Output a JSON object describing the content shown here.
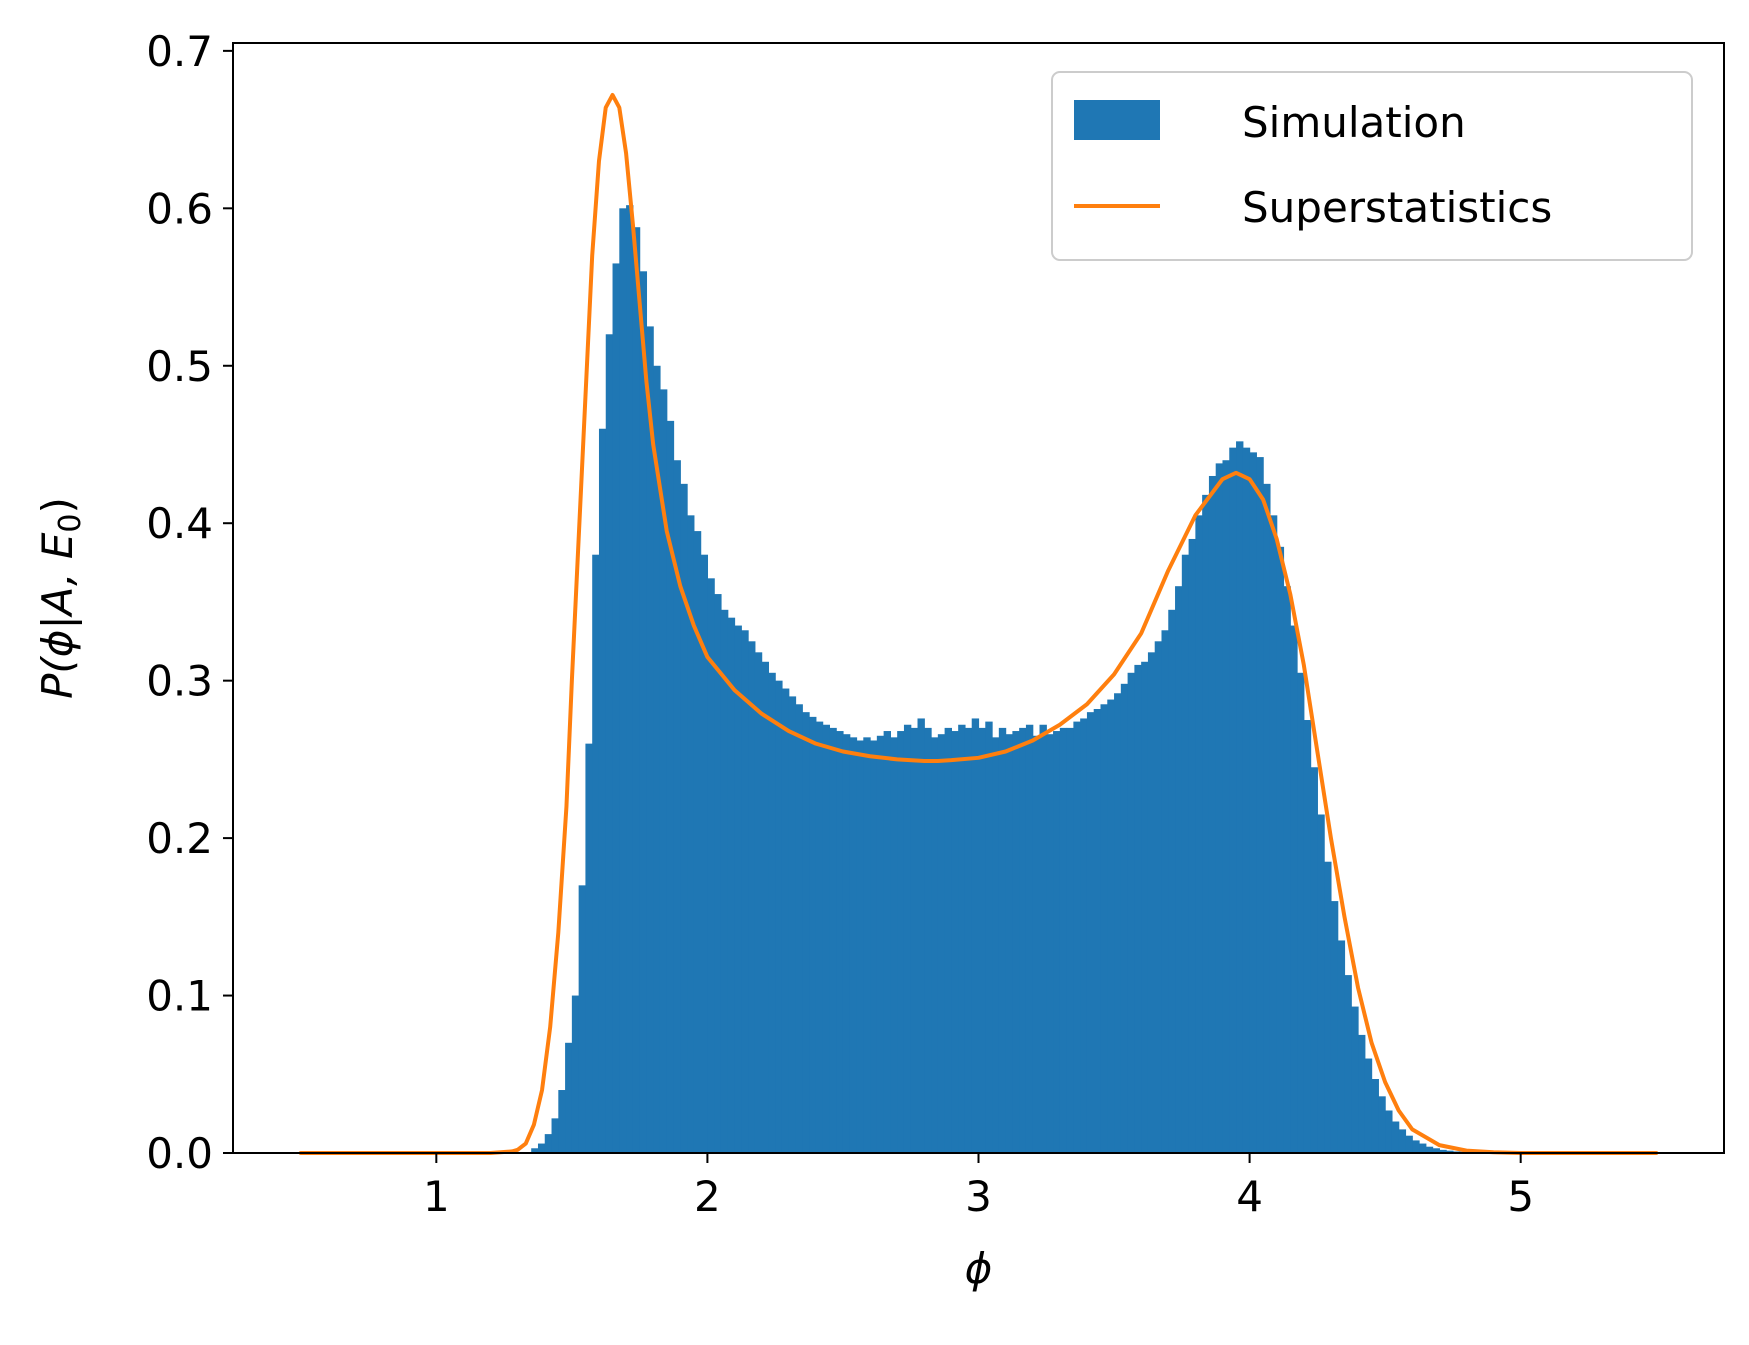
{
  "chart_data": {
    "type": "bar",
    "title": "",
    "xlabel": "ϕ",
    "ylabel_parts": {
      "main": "P(ϕ|A, E",
      "sub": "0",
      "close": ")"
    },
    "xlim": [
      0.25,
      5.75
    ],
    "ylim": [
      0.0,
      0.705
    ],
    "xticks": [
      1,
      2,
      3,
      4,
      5
    ],
    "xtick_labels": [
      "1",
      "2",
      "3",
      "4",
      "5"
    ],
    "yticks": [
      0.0,
      0.1,
      0.2,
      0.3,
      0.4,
      0.5,
      0.6,
      0.7
    ],
    "ytick_labels": [
      "0.0",
      "0.1",
      "0.2",
      "0.3",
      "0.4",
      "0.5",
      "0.6",
      "0.7"
    ],
    "grid": false,
    "legend_position": "top-right",
    "colors": {
      "simulation": "#1f77b4",
      "superstatistics": "#ff7f0e"
    },
    "series": [
      {
        "name": "Simulation",
        "kind": "histogram",
        "bin_width": 0.025,
        "bins": [
          [
            1.35,
            0.003
          ],
          [
            1.375,
            0.006
          ],
          [
            1.4,
            0.012
          ],
          [
            1.425,
            0.022
          ],
          [
            1.45,
            0.04
          ],
          [
            1.475,
            0.07
          ],
          [
            1.5,
            0.1
          ],
          [
            1.525,
            0.17
          ],
          [
            1.55,
            0.26
          ],
          [
            1.575,
            0.38
          ],
          [
            1.6,
            0.46
          ],
          [
            1.625,
            0.52
          ],
          [
            1.65,
            0.565
          ],
          [
            1.675,
            0.6
          ],
          [
            1.7,
            0.602
          ],
          [
            1.725,
            0.588
          ],
          [
            1.75,
            0.56
          ],
          [
            1.775,
            0.525
          ],
          [
            1.8,
            0.5
          ],
          [
            1.825,
            0.485
          ],
          [
            1.85,
            0.465
          ],
          [
            1.875,
            0.44
          ],
          [
            1.9,
            0.425
          ],
          [
            1.925,
            0.405
          ],
          [
            1.95,
            0.395
          ],
          [
            1.975,
            0.38
          ],
          [
            2.0,
            0.365
          ],
          [
            2.025,
            0.355
          ],
          [
            2.05,
            0.345
          ],
          [
            2.075,
            0.34
          ],
          [
            2.1,
            0.335
          ],
          [
            2.125,
            0.332
          ],
          [
            2.15,
            0.325
          ],
          [
            2.175,
            0.318
          ],
          [
            2.2,
            0.312
          ],
          [
            2.225,
            0.305
          ],
          [
            2.25,
            0.3
          ],
          [
            2.275,
            0.295
          ],
          [
            2.3,
            0.29
          ],
          [
            2.325,
            0.285
          ],
          [
            2.35,
            0.28
          ],
          [
            2.375,
            0.277
          ],
          [
            2.4,
            0.274
          ],
          [
            2.425,
            0.272
          ],
          [
            2.45,
            0.27
          ],
          [
            2.475,
            0.268
          ],
          [
            2.5,
            0.266
          ],
          [
            2.525,
            0.264
          ],
          [
            2.55,
            0.262
          ],
          [
            2.575,
            0.264
          ],
          [
            2.6,
            0.262
          ],
          [
            2.625,
            0.265
          ],
          [
            2.65,
            0.268
          ],
          [
            2.675,
            0.264
          ],
          [
            2.7,
            0.268
          ],
          [
            2.725,
            0.272
          ],
          [
            2.75,
            0.27
          ],
          [
            2.775,
            0.276
          ],
          [
            2.8,
            0.27
          ],
          [
            2.825,
            0.264
          ],
          [
            2.85,
            0.266
          ],
          [
            2.875,
            0.27
          ],
          [
            2.9,
            0.268
          ],
          [
            2.925,
            0.272
          ],
          [
            2.95,
            0.27
          ],
          [
            2.975,
            0.276
          ],
          [
            3.0,
            0.27
          ],
          [
            3.025,
            0.274
          ],
          [
            3.05,
            0.264
          ],
          [
            3.075,
            0.27
          ],
          [
            3.1,
            0.266
          ],
          [
            3.125,
            0.268
          ],
          [
            3.15,
            0.27
          ],
          [
            3.175,
            0.272
          ],
          [
            3.2,
            0.265
          ],
          [
            3.225,
            0.272
          ],
          [
            3.25,
            0.266
          ],
          [
            3.275,
            0.268
          ],
          [
            3.3,
            0.27
          ],
          [
            3.325,
            0.27
          ],
          [
            3.35,
            0.274
          ],
          [
            3.375,
            0.276
          ],
          [
            3.4,
            0.28
          ],
          [
            3.425,
            0.282
          ],
          [
            3.45,
            0.285
          ],
          [
            3.475,
            0.288
          ],
          [
            3.5,
            0.292
          ],
          [
            3.525,
            0.298
          ],
          [
            3.55,
            0.305
          ],
          [
            3.575,
            0.31
          ],
          [
            3.6,
            0.312
          ],
          [
            3.625,
            0.318
          ],
          [
            3.65,
            0.325
          ],
          [
            3.675,
            0.332
          ],
          [
            3.7,
            0.345
          ],
          [
            3.725,
            0.36
          ],
          [
            3.75,
            0.38
          ],
          [
            3.775,
            0.39
          ],
          [
            3.8,
            0.405
          ],
          [
            3.825,
            0.418
          ],
          [
            3.85,
            0.43
          ],
          [
            3.875,
            0.438
          ],
          [
            3.9,
            0.44
          ],
          [
            3.925,
            0.448
          ],
          [
            3.95,
            0.452
          ],
          [
            3.975,
            0.448
          ],
          [
            4.0,
            0.445
          ],
          [
            4.025,
            0.442
          ],
          [
            4.05,
            0.425
          ],
          [
            4.075,
            0.405
          ],
          [
            4.1,
            0.385
          ],
          [
            4.125,
            0.36
          ],
          [
            4.15,
            0.335
          ],
          [
            4.175,
            0.305
          ],
          [
            4.2,
            0.275
          ],
          [
            4.225,
            0.245
          ],
          [
            4.25,
            0.215
          ],
          [
            4.275,
            0.185
          ],
          [
            4.3,
            0.16
          ],
          [
            4.325,
            0.135
          ],
          [
            4.35,
            0.113
          ],
          [
            4.375,
            0.093
          ],
          [
            4.4,
            0.075
          ],
          [
            4.425,
            0.06
          ],
          [
            4.45,
            0.047
          ],
          [
            4.475,
            0.036
          ],
          [
            4.5,
            0.027
          ],
          [
            4.525,
            0.02
          ],
          [
            4.55,
            0.015
          ],
          [
            4.575,
            0.011
          ],
          [
            4.6,
            0.008
          ],
          [
            4.625,
            0.006
          ],
          [
            4.65,
            0.004
          ],
          [
            4.675,
            0.003
          ],
          [
            4.7,
            0.002
          ],
          [
            4.725,
            0.0015
          ],
          [
            4.75,
            0.001
          ],
          [
            4.775,
            0.0008
          ],
          [
            4.8,
            0.0005
          ]
        ]
      },
      {
        "name": "Superstatistics",
        "kind": "line",
        "points": [
          [
            0.5,
            0.0
          ],
          [
            1.0,
            0.0
          ],
          [
            1.2,
            0.0
          ],
          [
            1.28,
            0.001
          ],
          [
            1.3,
            0.002
          ],
          [
            1.33,
            0.006
          ],
          [
            1.36,
            0.018
          ],
          [
            1.39,
            0.04
          ],
          [
            1.42,
            0.08
          ],
          [
            1.45,
            0.14
          ],
          [
            1.48,
            0.22
          ],
          [
            1.5,
            0.3
          ],
          [
            1.525,
            0.39
          ],
          [
            1.55,
            0.48
          ],
          [
            1.575,
            0.57
          ],
          [
            1.6,
            0.63
          ],
          [
            1.625,
            0.664
          ],
          [
            1.65,
            0.672
          ],
          [
            1.675,
            0.664
          ],
          [
            1.7,
            0.635
          ],
          [
            1.725,
            0.59
          ],
          [
            1.75,
            0.54
          ],
          [
            1.775,
            0.49
          ],
          [
            1.8,
            0.45
          ],
          [
            1.85,
            0.395
          ],
          [
            1.9,
            0.36
          ],
          [
            1.95,
            0.335
          ],
          [
            2.0,
            0.315
          ],
          [
            2.1,
            0.294
          ],
          [
            2.2,
            0.279
          ],
          [
            2.3,
            0.268
          ],
          [
            2.4,
            0.26
          ],
          [
            2.5,
            0.255
          ],
          [
            2.6,
            0.252
          ],
          [
            2.7,
            0.25
          ],
          [
            2.8,
            0.249
          ],
          [
            2.85,
            0.249
          ],
          [
            2.9,
            0.2495
          ],
          [
            3.0,
            0.251
          ],
          [
            3.1,
            0.255
          ],
          [
            3.2,
            0.262
          ],
          [
            3.3,
            0.272
          ],
          [
            3.4,
            0.285
          ],
          [
            3.5,
            0.304
          ],
          [
            3.6,
            0.33
          ],
          [
            3.7,
            0.37
          ],
          [
            3.8,
            0.405
          ],
          [
            3.9,
            0.428
          ],
          [
            3.95,
            0.432
          ],
          [
            4.0,
            0.428
          ],
          [
            4.05,
            0.415
          ],
          [
            4.1,
            0.39
          ],
          [
            4.15,
            0.355
          ],
          [
            4.2,
            0.31
          ],
          [
            4.25,
            0.255
          ],
          [
            4.3,
            0.2
          ],
          [
            4.35,
            0.15
          ],
          [
            4.4,
            0.105
          ],
          [
            4.45,
            0.07
          ],
          [
            4.5,
            0.045
          ],
          [
            4.55,
            0.027
          ],
          [
            4.6,
            0.015
          ],
          [
            4.7,
            0.005
          ],
          [
            4.8,
            0.0015
          ],
          [
            4.9,
            0.0005
          ],
          [
            5.0,
            0.0
          ],
          [
            5.5,
            0.0
          ]
        ]
      }
    ]
  }
}
